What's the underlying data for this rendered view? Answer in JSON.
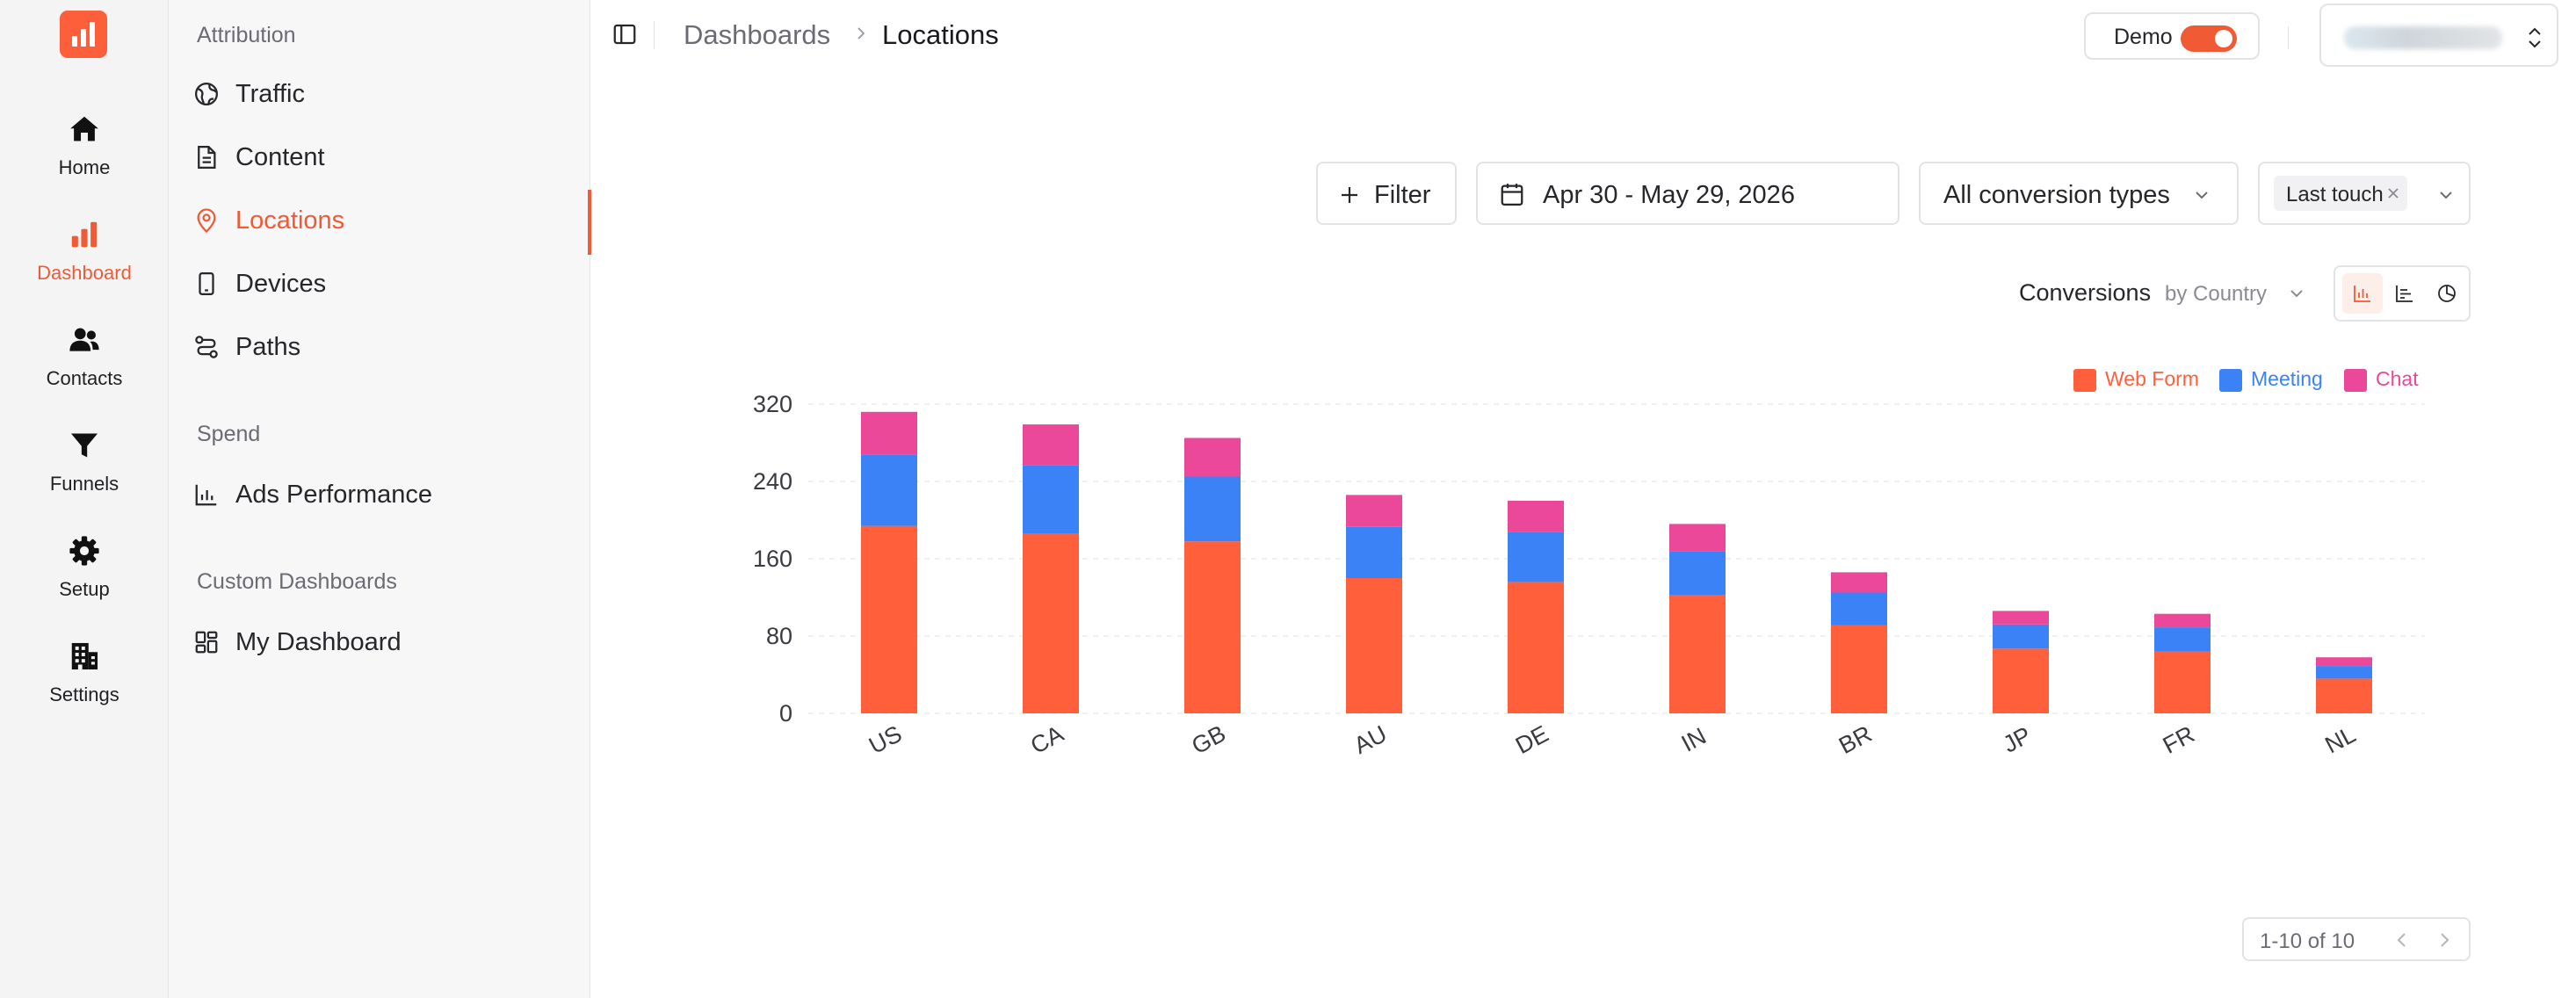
{
  "rail": {
    "items": [
      {
        "label": "Home",
        "icon": "home-icon"
      },
      {
        "label": "Dashboard",
        "icon": "bar-chart-icon"
      },
      {
        "label": "Contacts",
        "icon": "users-icon"
      },
      {
        "label": "Funnels",
        "icon": "funnel-icon"
      },
      {
        "label": "Setup",
        "icon": "gear-icon"
      },
      {
        "label": "Settings",
        "icon": "building-icon"
      }
    ],
    "active": "Dashboard"
  },
  "subnav": {
    "attribution_title": "Attribution",
    "attribution_items": [
      {
        "label": "Traffic",
        "icon": "globe-icon"
      },
      {
        "label": "Content",
        "icon": "document-icon"
      },
      {
        "label": "Locations",
        "icon": "map-pin-icon"
      },
      {
        "label": "Devices",
        "icon": "phone-icon"
      },
      {
        "label": "Paths",
        "icon": "route-icon"
      }
    ],
    "spend_title": "Spend",
    "spend_items": [
      {
        "label": "Ads Performance",
        "icon": "bar-chart-icon"
      }
    ],
    "custom_title": "Custom Dashboards",
    "custom_items": [
      {
        "label": "My Dashboard",
        "icon": "dashboard-grid-icon"
      }
    ],
    "active": "Locations"
  },
  "header": {
    "breadcrumb_parent": "Dashboards",
    "breadcrumb_current": "Locations",
    "demo_label": "Demo",
    "demo_enabled": true
  },
  "toolbar": {
    "filter_label": "Filter",
    "date_range": "Apr 30 - May 29, 2026",
    "conversion_types": "All conversion types",
    "attribution_model": "Last touch"
  },
  "chart_header": {
    "metric": "Conversions",
    "group_by": "by Country"
  },
  "colors": {
    "accent": "#f05a35",
    "web_form": "#ff5f3a",
    "meeting": "#3b82f6",
    "chat": "#ec4899"
  },
  "chart_data": {
    "type": "bar",
    "stacked": true,
    "categories": [
      "US",
      "CA",
      "GB",
      "AU",
      "DE",
      "IN",
      "BR",
      "JP",
      "FR",
      "NL"
    ],
    "series": [
      {
        "name": "Web Form",
        "color": "#ff5f3a",
        "values": [
          194,
          186,
          178,
          140,
          136,
          122,
          91,
          67,
          64,
          36
        ]
      },
      {
        "name": "Meeting",
        "color": "#3b82f6",
        "values": [
          74,
          71,
          67,
          53,
          52,
          46,
          34,
          25,
          25,
          13
        ]
      },
      {
        "name": "Chat",
        "color": "#ec4899",
        "values": [
          44,
          42,
          40,
          33,
          32,
          28,
          21,
          14,
          14,
          9
        ]
      }
    ],
    "yticks": [
      0,
      80,
      160,
      240,
      320
    ],
    "ylim": [
      0,
      320
    ],
    "grid": true,
    "legend": "top-right"
  },
  "pagination": {
    "text": "1-10 of 10"
  }
}
